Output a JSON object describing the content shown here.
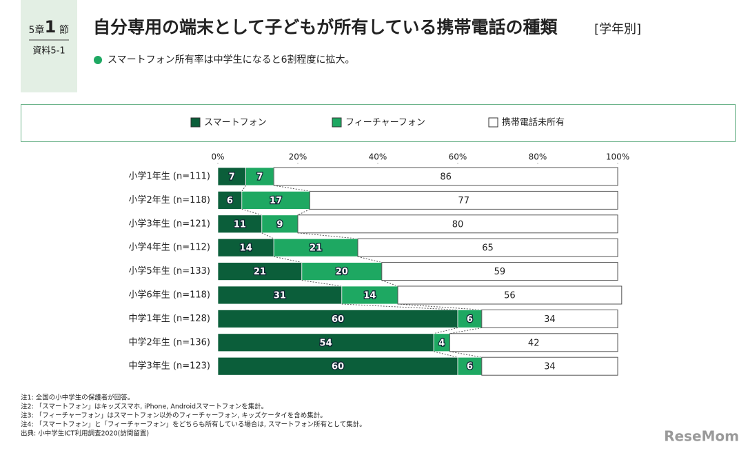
{
  "chart_data": {
    "type": "stacked-barh",
    "badge": {
      "chapter": "5章",
      "number": "1",
      "unit": "節",
      "material": "資料5-1"
    },
    "title": "自分専用の端末として子どもが所有している携帯電話の種類",
    "title_suffix": "[学年別]",
    "subtitle": "スマートフォン所有率は中学生になると6割程度に拡大。",
    "categories": [
      "小学1年生 (n=111)",
      "小学2年生 (n=118)",
      "小学3年生 (n=121)",
      "小学4年生 (n=112)",
      "小学5年生 (n=133)",
      "小学6年生 (n=118)",
      "中学1年生 (n=128)",
      "中学2年生 (n=136)",
      "中学3年生 (n=123)"
    ],
    "series": [
      {
        "name": "スマートフォン",
        "color": "#0b5e3a",
        "values": [
          7,
          6,
          11,
          14,
          21,
          31,
          60,
          54,
          60
        ]
      },
      {
        "name": "フィーチャーフォン",
        "color": "#1ea862",
        "values": [
          7,
          17,
          9,
          21,
          20,
          14,
          6,
          4,
          6
        ]
      },
      {
        "name": "携帯電話未所有",
        "color": "#ffffff",
        "values": [
          86,
          77,
          80,
          65,
          59,
          56,
          34,
          42,
          34
        ]
      }
    ],
    "xlim": [
      0,
      100
    ],
    "xticks": [
      {
        "value": 0,
        "label": "0%"
      },
      {
        "value": 20,
        "label": "20%"
      },
      {
        "value": 40,
        "label": "40%"
      },
      {
        "value": 60,
        "label": "60%"
      },
      {
        "value": 80,
        "label": "80%"
      },
      {
        "value": 100,
        "label": "100%"
      }
    ],
    "notes": [
      "注1: 全国の小中学生の保護者が回答。",
      "注2: 「スマートフォン」はキッズスマホ, iPhone, Androidスマートフォンを集計。",
      "注3: 「フィーチャーフォン」はスマートフォン以外のフィーチャーフォン, キッズケータイを含め集計。",
      "注4: 「スマートフォン」と「フィーチャーフォン」をどちらも所有している場合は, スマートフォン所有として集計。",
      "出典: 小中学生ICT利用調査2020(訪問留置)"
    ],
    "watermark": "ReseMom"
  }
}
